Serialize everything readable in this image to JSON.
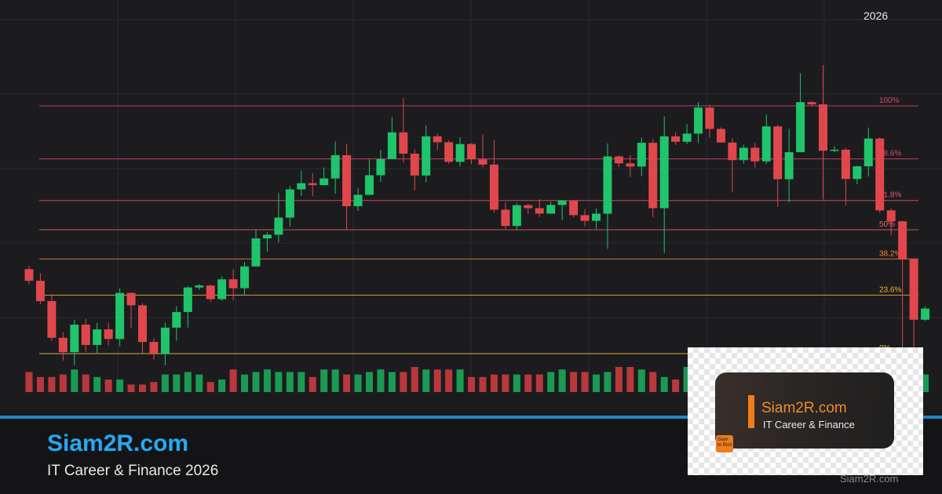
{
  "year_label": "2026",
  "brand": {
    "title": "Siam2R.com",
    "subtitle": "IT Career & Finance 2026",
    "watermark": "Siam2R.com"
  },
  "logo": {
    "title": "Siam2R.com",
    "subtitle": "IT Career & Finance",
    "badge_line1": "Siam",
    "badge_line2": "to Rich"
  },
  "colors": {
    "up": "#1fc46b",
    "down": "#e0474c",
    "accent_blue": "#26a9f0",
    "logo_orange": "#f07c1e",
    "vol_up": "#1a9a52",
    "vol_down": "#b8383c"
  },
  "chart_data": {
    "type": "candlestick",
    "price_range": [
      0,
      100
    ],
    "grid": true,
    "fib_levels": [
      {
        "label": "100%",
        "ratio": 1.0,
        "color": "#d9486f"
      },
      {
        "label": "78.6%",
        "ratio": 0.786,
        "color": "#d9486f"
      },
      {
        "label": "61.8%",
        "ratio": 0.618,
        "color": "#e0556a"
      },
      {
        "label": "50%",
        "ratio": 0.5,
        "color": "#e46358"
      },
      {
        "label": "38.2%",
        "ratio": 0.382,
        "color": "#f0883a"
      },
      {
        "label": "23.6%",
        "ratio": 0.236,
        "color": "#f2b43a"
      },
      {
        "label": "0%",
        "ratio": 0.0,
        "color": "#f4c542"
      }
    ],
    "candles": [
      [
        34.1,
        29.4,
        35.4,
        28.0,
        8
      ],
      [
        29.4,
        21.2,
        32.5,
        19.9,
        6
      ],
      [
        21.2,
        6.4,
        24.0,
        5.2,
        6
      ],
      [
        6.4,
        0.6,
        8.6,
        -2.8,
        7
      ],
      [
        0.6,
        11.7,
        13.6,
        -4.6,
        9
      ],
      [
        11.7,
        3.5,
        14.0,
        0.8,
        7
      ],
      [
        3.5,
        9.8,
        12.4,
        0.0,
        6
      ],
      [
        9.8,
        5.9,
        12.6,
        3.2,
        5
      ],
      [
        5.9,
        24.5,
        26.4,
        3.0,
        5
      ],
      [
        24.5,
        19.5,
        24.7,
        10.3,
        3
      ],
      [
        19.5,
        4.7,
        20.4,
        -0.3,
        3
      ],
      [
        4.7,
        0.0,
        6.2,
        -2.4,
        4
      ],
      [
        0.0,
        10.5,
        12.5,
        -4.6,
        7
      ],
      [
        10.5,
        16.8,
        19.2,
        5.2,
        7
      ],
      [
        16.8,
        26.7,
        27.2,
        10.5,
        8
      ],
      [
        26.7,
        27.5,
        28.1,
        25.7,
        7
      ],
      [
        27.5,
        22.0,
        27.9,
        20.8,
        4
      ],
      [
        22.0,
        30.0,
        31.2,
        21.4,
        5
      ],
      [
        30.0,
        26.4,
        34.0,
        21.6,
        9
      ],
      [
        26.4,
        35.2,
        37.0,
        23.8,
        7
      ],
      [
        35.2,
        46.5,
        50.2,
        35.2,
        8
      ],
      [
        46.5,
        48.0,
        49.0,
        41.2,
        9
      ],
      [
        48.0,
        54.9,
        64.8,
        44.9,
        8
      ],
      [
        54.9,
        66.3,
        67.7,
        51.2,
        8
      ],
      [
        66.3,
        68.8,
        73.9,
        63.6,
        8
      ],
      [
        68.8,
        68.0,
        72.8,
        63.5,
        6
      ],
      [
        68.0,
        70.7,
        75.1,
        67.8,
        9
      ],
      [
        70.7,
        80.1,
        85.6,
        64.5,
        9
      ],
      [
        80.1,
        59.5,
        84.7,
        50.1,
        7
      ],
      [
        59.5,
        64.1,
        66.8,
        57.6,
        7
      ],
      [
        64.1,
        72.0,
        78.4,
        63.8,
        8
      ],
      [
        72.0,
        78.5,
        82.2,
        69.3,
        9
      ],
      [
        78.5,
        89.3,
        95.5,
        78.8,
        8
      ],
      [
        89.3,
        80.7,
        103.1,
        77.1,
        8
      ],
      [
        80.7,
        71.9,
        82.4,
        66.0,
        10
      ],
      [
        71.9,
        87.7,
        92.1,
        69.2,
        9
      ],
      [
        87.7,
        85.3,
        88.8,
        82.1,
        9
      ],
      [
        85.3,
        77.4,
        86.1,
        76.6,
        9
      ],
      [
        77.4,
        84.6,
        87.4,
        75.6,
        9
      ],
      [
        84.6,
        78.4,
        85.0,
        76.5,
        6
      ],
      [
        78.4,
        76.3,
        88.5,
        75.2,
        6
      ],
      [
        76.3,
        58.1,
        86.3,
        57.0,
        7
      ],
      [
        58.1,
        51.5,
        61.1,
        50.3,
        7
      ],
      [
        51.5,
        59.9,
        60.8,
        49.8,
        7
      ],
      [
        59.9,
        58.7,
        60.5,
        56.4,
        7
      ],
      [
        58.7,
        56.5,
        62.4,
        55.1,
        7
      ],
      [
        56.5,
        60.0,
        61.4,
        57.7,
        8
      ],
      [
        60.0,
        61.8,
        61.7,
        53.8,
        9
      ],
      [
        61.8,
        55.9,
        62.0,
        55.0,
        8
      ],
      [
        55.9,
        53.6,
        58.3,
        51.4,
        8
      ],
      [
        53.6,
        56.5,
        58.5,
        50.3,
        7
      ],
      [
        56.5,
        79.6,
        84.8,
        42.3,
        8
      ],
      [
        79.6,
        76.8,
        79.9,
        75.3,
        10
      ],
      [
        76.8,
        75.5,
        80.1,
        71.4,
        10
      ],
      [
        75.5,
        85.1,
        87.2,
        71.6,
        9
      ],
      [
        85.1,
        58.7,
        86.6,
        55.1,
        8
      ],
      [
        58.7,
        87.7,
        95.7,
        40.6,
        6
      ],
      [
        87.7,
        85.5,
        89.3,
        84.2,
        5
      ],
      [
        85.5,
        88.8,
        92.6,
        84.6,
        10
      ],
      [
        88.8,
        99.3,
        101.5,
        84.9,
        10
      ],
      [
        99.3,
        90.7,
        100.5,
        87.2,
        10
      ],
      [
        90.7,
        85.2,
        91.3,
        85.2,
        10
      ],
      [
        85.2,
        78.1,
        86.9,
        65.2,
        7
      ],
      [
        78.1,
        83.1,
        84.3,
        76.7,
        7
      ],
      [
        83.1,
        77.6,
        85.0,
        75.1,
        8
      ],
      [
        77.6,
        91.7,
        96.5,
        76.5,
        8
      ],
      [
        91.7,
        70.4,
        92.4,
        59.3,
        8
      ],
      [
        70.4,
        81.3,
        90.8,
        61.1,
        9
      ],
      [
        81.3,
        101.5,
        113.2,
        81.8,
        9
      ],
      [
        101.5,
        100.6,
        101.9,
        100.0,
        9
      ],
      [
        100.6,
        81.9,
        116.4,
        62.2,
        9
      ],
      [
        81.9,
        82.3,
        83.7,
        81.3,
        8
      ],
      [
        82.3,
        70.5,
        83.1,
        59.9,
        8
      ],
      [
        70.5,
        75.6,
        75.8,
        68.4,
        8
      ],
      [
        75.6,
        86.8,
        91.2,
        71.5,
        10
      ],
      [
        86.8,
        57.8,
        87.3,
        56.9,
        9
      ],
      [
        57.8,
        53.4,
        58.6,
        47.8,
        9
      ],
      [
        53.4,
        38.0,
        53.6,
        2.2,
        8
      ],
      [
        38.0,
        13.7,
        23.7,
        -4.2,
        10
      ],
      [
        13.7,
        18.2,
        19.1,
        13.3,
        7
      ]
    ],
    "candle_note": "each candle is [open, close, high, low, volume] in chart price units (0 = 0% level, 100 = 100% level)"
  }
}
